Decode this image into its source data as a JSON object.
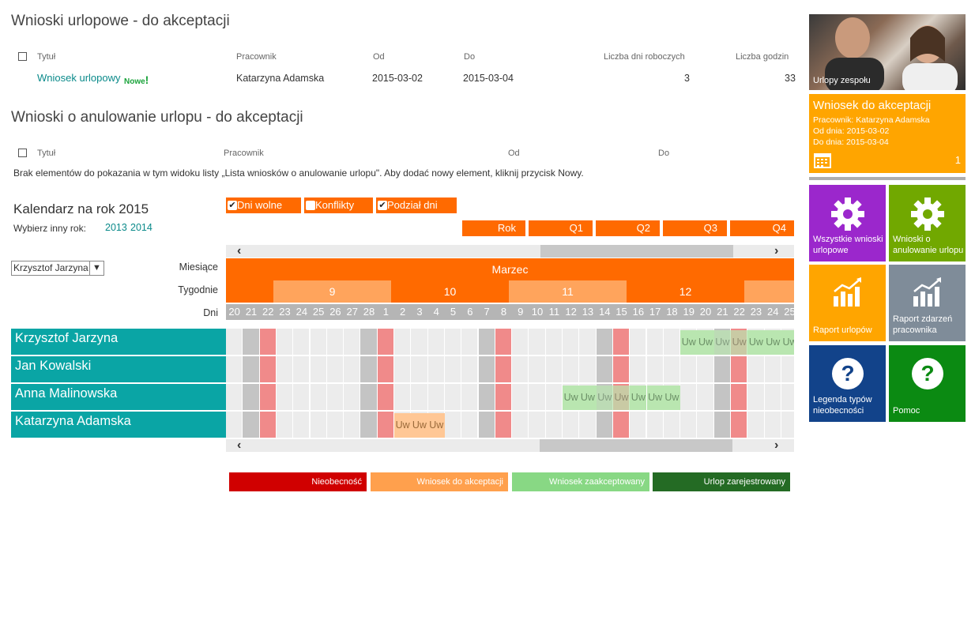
{
  "section1": {
    "title": "Wnioski urlopowe - do akceptacji",
    "headers": [
      "Tytuł",
      "Pracownik",
      "Od",
      "Do",
      "Liczba dni roboczych",
      "Liczba godzin"
    ],
    "row": {
      "title": "Wniosek urlopowy",
      "badge": "Nowe",
      "employee": "Katarzyna Adamska",
      "from": "2015-03-02",
      "to": "2015-03-04",
      "days": "3",
      "hours": "33"
    }
  },
  "section2": {
    "title": "Wnioski o anulowanie urlopu - do akceptacji",
    "headers": [
      "Tytuł",
      "Pracownik",
      "Od",
      "Do"
    ],
    "empty_message": "Brak elementów do pokazania w tym widoku listy „Lista wniosków o anulowanie urlopu\". Aby dodać nowy element, kliknij przycisk Nowy."
  },
  "calendar": {
    "title": "Kalendarz na rok 2015",
    "choose_year_label": "Wybierz inny rok:",
    "years": [
      "2013",
      "2014"
    ],
    "toggles": [
      {
        "label": "Dni wolne",
        "checked": true
      },
      {
        "label": "Konflikty",
        "checked": false
      },
      {
        "label": "Podział dni",
        "checked": true
      }
    ],
    "quarters": [
      "Rok",
      "Q1",
      "Q2",
      "Q3",
      "Q4"
    ],
    "employee_select": "Krzysztof Jarzyna",
    "row_labels": {
      "months": "Miesiące",
      "weeks": "Tygodnie",
      "days": "Dni"
    },
    "month": "Marzec",
    "weeks": [
      "9",
      "10",
      "11",
      "12"
    ],
    "days": [
      "20",
      "21",
      "22",
      "23",
      "24",
      "25",
      "26",
      "27",
      "28",
      "1",
      "2",
      "3",
      "4",
      "5",
      "6",
      "7",
      "8",
      "9",
      "10",
      "11",
      "12",
      "13",
      "14",
      "15",
      "16",
      "17",
      "18",
      "19",
      "20",
      "21",
      "22",
      "23",
      "24",
      "25"
    ],
    "employees": [
      "Krzysztof Jarzyna",
      "Jan Kowalski",
      "Anna Malinowska",
      "Katarzyna Adamska"
    ],
    "absence_code": "Uw",
    "entries": [
      {
        "employee": 0,
        "start": 27,
        "end": 33,
        "status": "accepted"
      },
      {
        "employee": 2,
        "start": 20,
        "end": 26,
        "status": "accepted"
      },
      {
        "employee": 3,
        "start": 10,
        "end": 12,
        "status": "pending"
      }
    ],
    "weekend_cols": [
      1,
      2,
      8,
      9,
      15,
      16,
      22,
      23,
      29,
      30
    ],
    "colors": {
      "header": "#ff6a00",
      "week_light": "#ffa45c",
      "day_header": "#b5b5b5",
      "weekend": "#c4c4c4",
      "holiday": "#f08a8a",
      "cell": "#ececec",
      "accepted": "#b9e6b0",
      "pending": "#ffc795"
    }
  },
  "legend": [
    {
      "label": "Nieobecność",
      "color": "#d00000"
    },
    {
      "label": "Wniosek do akceptacji",
      "color": "#ffa04d"
    },
    {
      "label": "Wniosek zaakceptowany",
      "color": "#88d884"
    },
    {
      "label": "Urlop zarejestrowany",
      "color": "#246b24"
    }
  ],
  "tiles": {
    "team": {
      "label": "Urlopy zespołu"
    },
    "request": {
      "title": "Wniosek do akceptacji",
      "employee": "Pracownik: Katarzyna Adamska",
      "from": "Od dnia: 2015-03-02",
      "to": "Do dnia: 2015-03-04",
      "count": "1",
      "color": "#ffa500"
    },
    "grid": [
      {
        "label": "Wszystkie wnioski urlopowe",
        "color": "#9b27cc",
        "icon": "gear-icon"
      },
      {
        "label": "Wnioski o anulowanie urlopu",
        "color": "#71a800",
        "icon": "gear-icon"
      },
      {
        "label": "Raport urlopów",
        "color": "#ffa500",
        "icon": "chart-icon"
      },
      {
        "label": "Raport zdarzeń pracownika",
        "color": "#7f8c99",
        "icon": "chart-icon"
      },
      {
        "label": "Legenda typów nieobecności",
        "color": "#12438a",
        "icon": "question-icon"
      },
      {
        "label": "Pomoc",
        "color": "#0b8a12",
        "icon": "question-icon"
      }
    ]
  }
}
